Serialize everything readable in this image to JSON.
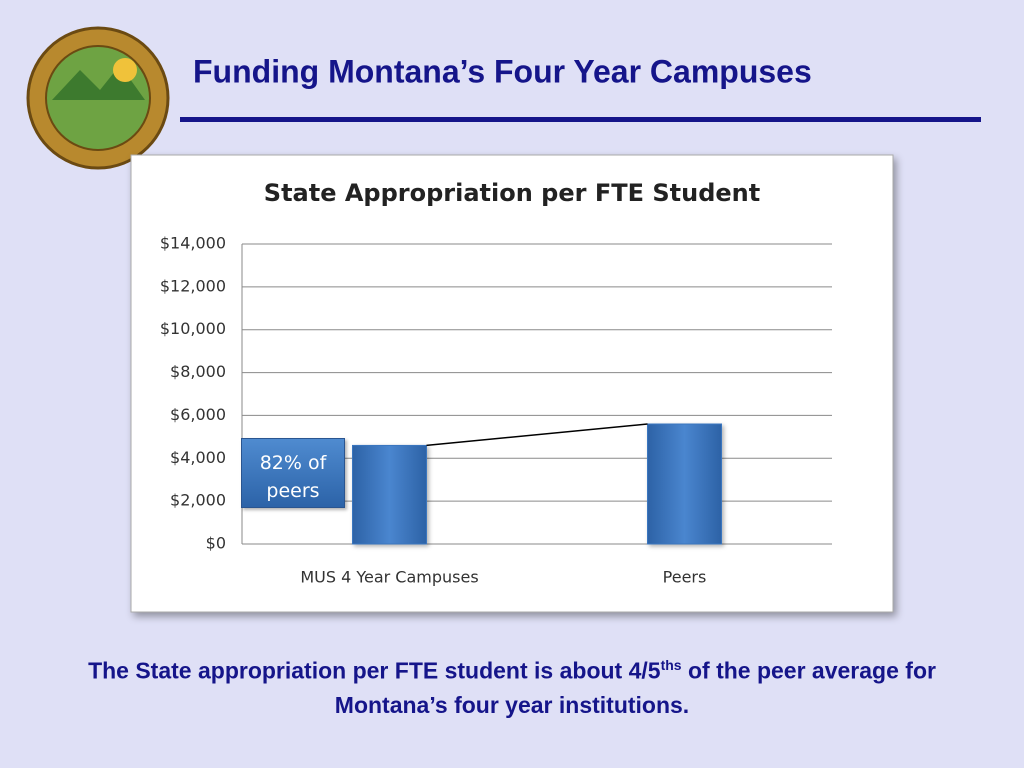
{
  "slide": {
    "title": "Funding Montana’s Four Year Campuses"
  },
  "chart_data": {
    "type": "bar",
    "title": "State Appropriation per FTE Student",
    "categories": [
      "MUS 4 Year Campuses",
      "Peers"
    ],
    "values": [
      4600,
      5600
    ],
    "color": "#3a76bf",
    "ylim": [
      0,
      14000
    ],
    "yticks": [
      {
        "value": 0,
        "label": "$0"
      },
      {
        "value": 2000,
        "label": "$2,000"
      },
      {
        "value": 4000,
        "label": "$4,000"
      },
      {
        "value": 6000,
        "label": "$6,000"
      },
      {
        "value": 8000,
        "label": "$8,000"
      },
      {
        "value": 10000,
        "label": "$10,000"
      },
      {
        "value": 12000,
        "label": "$12,000"
      },
      {
        "value": 14000,
        "label": "$14,000"
      }
    ],
    "grid": true,
    "annotation": {
      "highlight": "82%",
      "text": "of peers"
    }
  },
  "caption": {
    "before": "The State appropriation per FTE student is about 4/5",
    "superscript": "ths",
    "after": "of the peer average for Montana’s four year institutions."
  }
}
